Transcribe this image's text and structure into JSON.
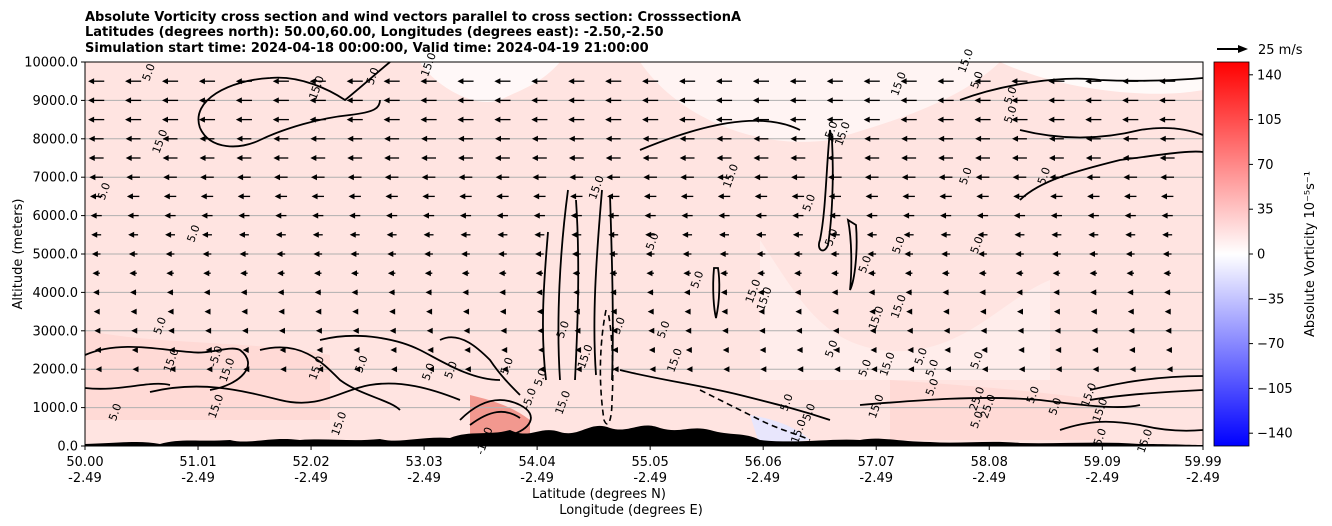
{
  "chart_data": {
    "type": "heatmap",
    "title_lines": [
      "Absolute Vorticity cross section and wind vectors parallel to cross section: CrosssectionA",
      "Latitudes (degrees north): 50.00,60.00, Longitudes (degrees east): -2.50,-2.50",
      "Simulation start time: 2024-04-18 00:00:00, Valid time: 2024-04-19 21:00:00"
    ],
    "xlabel_lines": [
      "Latitude (degrees N)",
      "Longitude (degrees E)"
    ],
    "ylabel": "Altitude (meters)",
    "xlim": [
      50.0,
      59.99
    ],
    "ylim": [
      0,
      10000
    ],
    "x_ticks": [
      {
        "value": 50.0,
        "lat": "50.00",
        "lon": "-2.49"
      },
      {
        "value": 51.01,
        "lat": "51.01",
        "lon": "-2.49"
      },
      {
        "value": 52.02,
        "lat": "52.02",
        "lon": "-2.49"
      },
      {
        "value": 53.03,
        "lat": "53.03",
        "lon": "-2.49"
      },
      {
        "value": 54.04,
        "lat": "54.04",
        "lon": "-2.49"
      },
      {
        "value": 55.05,
        "lat": "55.05",
        "lon": "-2.49"
      },
      {
        "value": 56.06,
        "lat": "56.06",
        "lon": "-2.49"
      },
      {
        "value": 57.07,
        "lat": "57.07",
        "lon": "-2.49"
      },
      {
        "value": 58.08,
        "lat": "58.08",
        "lon": "-2.49"
      },
      {
        "value": 59.09,
        "lat": "59.09",
        "lon": "-2.49"
      },
      {
        "value": 59.99,
        "lat": "59.99",
        "lon": "-2.49"
      }
    ],
    "y_ticks": [
      {
        "value": 0,
        "label": "0.0"
      },
      {
        "value": 1000,
        "label": "1000.0"
      },
      {
        "value": 2000,
        "label": "2000.0"
      },
      {
        "value": 3000,
        "label": "3000.0"
      },
      {
        "value": 4000,
        "label": "4000.0"
      },
      {
        "value": 5000,
        "label": "5000.0"
      },
      {
        "value": 6000,
        "label": "6000.0"
      },
      {
        "value": 7000,
        "label": "7000.0"
      },
      {
        "value": 8000,
        "label": "8000.0"
      },
      {
        "value": 9000,
        "label": "9000.0"
      },
      {
        "value": 10000,
        "label": "10000.0"
      }
    ],
    "grid": "horizontal",
    "colorbar": {
      "label": "Absolute Vorticity 10⁻⁵s⁻¹",
      "range": [
        -150,
        150
      ],
      "ticks": [
        {
          "value": 140,
          "label": "140"
        },
        {
          "value": 105,
          "label": "105"
        },
        {
          "value": 70,
          "label": "70"
        },
        {
          "value": 35,
          "label": "35"
        },
        {
          "value": 0,
          "label": "0"
        },
        {
          "value": -35,
          "label": "−35"
        },
        {
          "value": -70,
          "label": "−70"
        },
        {
          "value": -105,
          "label": "−105"
        },
        {
          "value": -140,
          "label": "−140"
        }
      ],
      "colors": {
        "low": "#0000ff",
        "mid": "#ffffff",
        "high": "#ff0000"
      }
    },
    "quiver_key": {
      "label": "25 m/s",
      "speed": 25
    },
    "wind_rows": [
      {
        "alt": 9500,
        "u": -13
      },
      {
        "alt": 9000,
        "u": -13
      },
      {
        "alt": 8500,
        "u": -13
      },
      {
        "alt": 8000,
        "u": -12
      },
      {
        "alt": 7500,
        "u": -12
      },
      {
        "alt": 7000,
        "u": -11
      },
      {
        "alt": 6500,
        "u": -10
      },
      {
        "alt": 6000,
        "u": -9
      },
      {
        "alt": 5500,
        "u": -8
      },
      {
        "alt": 5000,
        "u": -7
      },
      {
        "alt": 4500,
        "u": -6
      },
      {
        "alt": 4000,
        "u": -5
      },
      {
        "alt": 3500,
        "u": -4
      },
      {
        "alt": 3000,
        "u": -3
      },
      {
        "alt": 2500,
        "u": -2
      },
      {
        "alt": 2000,
        "u": -1
      }
    ],
    "contour_labels": [
      {
        "lat": 50.6,
        "alt": 9700,
        "text": "5.0"
      },
      {
        "lat": 52.1,
        "alt": 9300,
        "text": "15.0"
      },
      {
        "lat": 52.6,
        "alt": 9600,
        "text": "5.0"
      },
      {
        "lat": 53.1,
        "alt": 9900,
        "text": "15.0"
      },
      {
        "lat": 50.7,
        "alt": 7900,
        "text": "15.0"
      },
      {
        "lat": 50.2,
        "alt": 6600,
        "text": "5.0"
      },
      {
        "lat": 51.0,
        "alt": 5500,
        "text": "5.0"
      },
      {
        "lat": 50.7,
        "alt": 3100,
        "text": "5.0"
      },
      {
        "lat": 50.8,
        "alt": 2200,
        "text": "15.0"
      },
      {
        "lat": 51.2,
        "alt": 2300,
        "text": "-5.0"
      },
      {
        "lat": 51.3,
        "alt": 1950,
        "text": "15.0"
      },
      {
        "lat": 50.3,
        "alt": 850,
        "text": "5.0"
      },
      {
        "lat": 51.2,
        "alt": 1000,
        "text": "15.0"
      },
      {
        "lat": 52.1,
        "alt": 2000,
        "text": "15.0"
      },
      {
        "lat": 52.3,
        "alt": 550,
        "text": "15.0"
      },
      {
        "lat": 52.5,
        "alt": 2100,
        "text": "5.0"
      },
      {
        "lat": 53.1,
        "alt": 1900,
        "text": "5.0"
      },
      {
        "lat": 53.3,
        "alt": 1950,
        "text": "5.0"
      },
      {
        "lat": 53.8,
        "alt": 2050,
        "text": "5.0"
      },
      {
        "lat": 54.1,
        "alt": 1750,
        "text": "5.0"
      },
      {
        "lat": 54.3,
        "alt": 1100,
        "text": "15.0"
      },
      {
        "lat": 54.6,
        "alt": 6700,
        "text": "15.0"
      },
      {
        "lat": 54.3,
        "alt": 3000,
        "text": "5.0"
      },
      {
        "lat": 54.5,
        "alt": 2300,
        "text": "15.0"
      },
      {
        "lat": 55.2,
        "alt": 3000,
        "text": "5.0"
      },
      {
        "lat": 55.3,
        "alt": 2200,
        "text": "15.0"
      },
      {
        "lat": 54.8,
        "alt": 3100,
        "text": "5.0"
      },
      {
        "lat": 55.1,
        "alt": 5300,
        "text": "5.0"
      },
      {
        "lat": 55.5,
        "alt": 4300,
        "text": "5.0"
      },
      {
        "lat": 55.8,
        "alt": 7000,
        "text": "15.0"
      },
      {
        "lat": 56.0,
        "alt": 4000,
        "text": "15.0"
      },
      {
        "lat": 56.1,
        "alt": 3800,
        "text": "15.0"
      },
      {
        "lat": 56.3,
        "alt": 1100,
        "text": "5.0"
      },
      {
        "lat": 56.5,
        "alt": 850,
        "text": "5.0"
      },
      {
        "lat": 56.5,
        "alt": 6300,
        "text": "5.0"
      },
      {
        "lat": 56.7,
        "alt": 5400,
        "text": "5.0"
      },
      {
        "lat": 56.7,
        "alt": 8200,
        "text": "5.0"
      },
      {
        "lat": 56.8,
        "alt": 8100,
        "text": "15.0"
      },
      {
        "lat": 56.7,
        "alt": 2500,
        "text": "5.0"
      },
      {
        "lat": 57.0,
        "alt": 4700,
        "text": "5.0"
      },
      {
        "lat": 57.0,
        "alt": 2000,
        "text": "5.0"
      },
      {
        "lat": 57.1,
        "alt": 1000,
        "text": "15.0"
      },
      {
        "lat": 57.1,
        "alt": 3300,
        "text": "15.0"
      },
      {
        "lat": 57.3,
        "alt": 5200,
        "text": "5.0"
      },
      {
        "lat": 57.3,
        "alt": 9400,
        "text": "15.0"
      },
      {
        "lat": 57.2,
        "alt": 2100,
        "text": "15.0"
      },
      {
        "lat": 57.3,
        "alt": 3600,
        "text": "15.0"
      },
      {
        "lat": 57.5,
        "alt": 2300,
        "text": "5.0"
      },
      {
        "lat": 57.6,
        "alt": 2000,
        "text": "5.0"
      },
      {
        "lat": 57.6,
        "alt": 1500,
        "text": "5.0"
      },
      {
        "lat": 58.0,
        "alt": 2200,
        "text": "5.0"
      },
      {
        "lat": 58.0,
        "alt": 1200,
        "text": "25.0"
      },
      {
        "lat": 58.0,
        "alt": 650,
        "text": "5.0"
      },
      {
        "lat": 58.1,
        "alt": 1000,
        "text": "25.0"
      },
      {
        "lat": 58.0,
        "alt": 5200,
        "text": "5.0"
      },
      {
        "lat": 57.9,
        "alt": 7000,
        "text": "5.0"
      },
      {
        "lat": 58.0,
        "alt": 9500,
        "text": "5.0"
      },
      {
        "lat": 58.3,
        "alt": 9100,
        "text": "5.0"
      },
      {
        "lat": 58.3,
        "alt": 8600,
        "text": "5.0"
      },
      {
        "lat": 58.5,
        "alt": 1300,
        "text": "5.0"
      },
      {
        "lat": 58.7,
        "alt": 1000,
        "text": "5.0"
      },
      {
        "lat": 58.6,
        "alt": 7000,
        "text": "5.0"
      },
      {
        "lat": 59.0,
        "alt": 1300,
        "text": "15.0"
      },
      {
        "lat": 59.1,
        "alt": 900,
        "text": "15.0"
      },
      {
        "lat": 59.1,
        "alt": 200,
        "text": "5.0"
      },
      {
        "lat": 59.5,
        "alt": 100,
        "text": "15.0"
      },
      {
        "lat": 57.9,
        "alt": 10000,
        "text": "15.0"
      },
      {
        "lat": 56.4,
        "alt": 300,
        "text": "-15.0"
      },
      {
        "lat": 53.6,
        "alt": 100,
        "text": "-15.0"
      },
      {
        "lat": 54.0,
        "alt": 1200,
        "text": "-5.0"
      }
    ]
  }
}
